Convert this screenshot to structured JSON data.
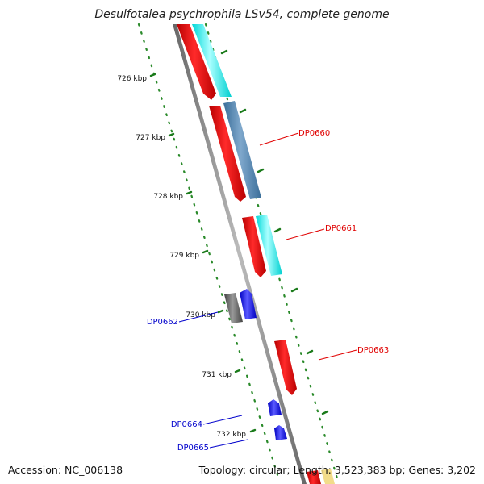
{
  "title": "Desulfotalea psychrophila LSv54, complete genome",
  "footer": {
    "accession": "Accession: NC_006138",
    "stats": "Topology: circular; Length: 3,523,383 bp; Genes: 3,202"
  },
  "ticks": [
    {
      "label": "726 kbp"
    },
    {
      "label": "727 kbp"
    },
    {
      "label": "728 kbp"
    },
    {
      "label": "729 kbp"
    },
    {
      "label": "730 kbp"
    },
    {
      "label": "731 kbp"
    },
    {
      "label": "732 kbp"
    }
  ],
  "gene_labels": [
    {
      "text": "DP0660",
      "color": "#e00000"
    },
    {
      "text": "DP0661",
      "color": "#e00000"
    },
    {
      "text": "DP0662",
      "color": "#0000cc"
    },
    {
      "text": "DP0663",
      "color": "#e00000"
    },
    {
      "text": "DP0664",
      "color": "#0000cc"
    },
    {
      "text": "DP0665",
      "color": "#0000cc"
    }
  ],
  "colors": {
    "forward_gene": "#ff0000",
    "reverse_gene": "#0000ff",
    "cog_cyan": "#00ffff",
    "cog_steelblue": "#4682b4",
    "cog_gray": "#555555",
    "cog_yellow": "#f5e08a",
    "backbone": "#808080",
    "tick_green": "#008000"
  }
}
